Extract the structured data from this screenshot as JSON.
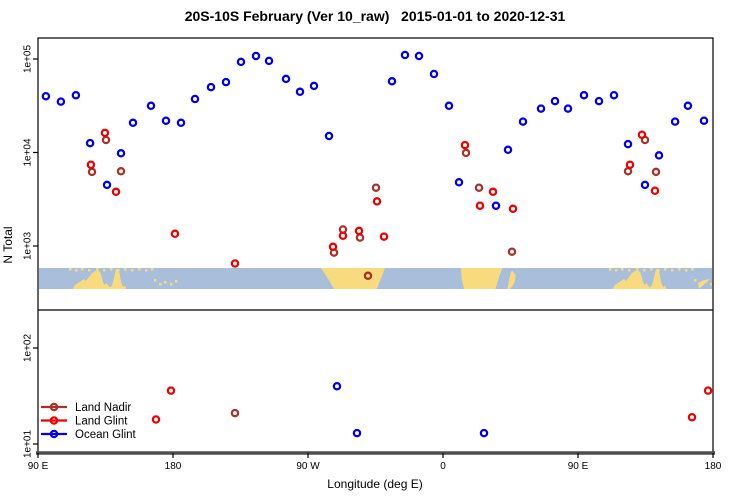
{
  "title": "20S-10S February (Ver 10_raw)   2015-01-01 to 2020-12-31",
  "axes": {
    "ylabel": "N Total",
    "xlabel": "Longitude (deg E)",
    "y_ticks": [
      "1e+05",
      "1e+04",
      "1e+03",
      "1e+02",
      "1e+01"
    ],
    "x_ticks": [
      "90 E",
      "180",
      "90 W",
      "0",
      "90 E",
      "180"
    ]
  },
  "legend": {
    "items": [
      {
        "label": "Land Nadir",
        "color": "#A93227"
      },
      {
        "label": "Land Glint",
        "color": "#EE0000"
      },
      {
        "label": "Ocean Glint",
        "color": "#0000EE"
      }
    ]
  },
  "colors": {
    "land_nadir": "#A93227",
    "land_glint": "#EE0000",
    "ocean_glint": "#0000EE",
    "map_ocean": "#A9BEDB",
    "map_land": "#F8DB7E",
    "axis_line": "#4D4D4D",
    "text": "#000000"
  },
  "chart_data": {
    "type": "scatter",
    "title": "20S-10S February (Ver 10_raw)   2015-01-01 to 2020-12-31",
    "xlabel": "Longitude (deg E)",
    "ylabel": "N Total",
    "x_axis": {
      "note": "longitude axis wraps eastward from 90E through 180, 90W, 0, 90E to 180; stored lon is degrees east continuing past 360",
      "tick_lons": [
        90,
        180,
        270,
        360,
        450,
        540
      ],
      "tick_labels": [
        "90 E",
        "180",
        "90 W",
        "0",
        "90 E",
        "180"
      ],
      "range": [
        90,
        540
      ]
    },
    "y_axis": {
      "scale": "log10",
      "tick_values": [
        100000,
        10000,
        1000,
        100,
        10
      ],
      "tick_labels": [
        "1e+05",
        "1e+04",
        "1e+03",
        "1e+02",
        "1e+01"
      ],
      "broken_axis": "map strip inserted below 1e+03; lower panel resumes above 1e+02"
    },
    "map_strip": {
      "band_lat": "10S-20S world map strip",
      "ocean_color": "#A9BEDB",
      "land_color": "#F8DB7E",
      "land_masses": [
        "Australia (appears twice)",
        "Melanesian islands",
        "South America",
        "Africa",
        "Madagascar"
      ]
    },
    "series": [
      {
        "name": "Land Nadir",
        "color": "#A93227",
        "points": [
          {
            "lon": 135.3,
            "n": 13600
          },
          {
            "lon": 126.0,
            "n": 6200
          },
          {
            "lon": 145.3,
            "n": 6300
          },
          {
            "lon": 293.3,
            "n": 1500
          },
          {
            "lon": 304.7,
            "n": 1230
          },
          {
            "lon": 287.3,
            "n": 850
          },
          {
            "lon": 315.3,
            "n": 4200
          },
          {
            "lon": 310.0,
            "n": 480
          },
          {
            "lon": 375.3,
            "n": 9900
          },
          {
            "lon": 384.0,
            "n": 4200
          },
          {
            "lon": 406.0,
            "n": 870
          },
          {
            "lon": 494.7,
            "n": 13600
          },
          {
            "lon": 483.3,
            "n": 6300
          },
          {
            "lon": 502.0,
            "n": 6200
          },
          {
            "lon": 221.3,
            "n": 21
          }
        ]
      },
      {
        "name": "Land Glint",
        "color": "#EE0000",
        "points": [
          {
            "lon": 134.7,
            "n": 16200
          },
          {
            "lon": 125.3,
            "n": 7400
          },
          {
            "lon": 142.0,
            "n": 3800
          },
          {
            "lon": 181.3,
            "n": 1350
          },
          {
            "lon": 221.3,
            "n": 650
          },
          {
            "lon": 293.3,
            "n": 1290
          },
          {
            "lon": 304.0,
            "n": 1450
          },
          {
            "lon": 286.7,
            "n": 980
          },
          {
            "lon": 316.0,
            "n": 3000
          },
          {
            "lon": 320.7,
            "n": 1260
          },
          {
            "lon": 374.7,
            "n": 12000
          },
          {
            "lon": 393.3,
            "n": 3800
          },
          {
            "lon": 384.7,
            "n": 2700
          },
          {
            "lon": 406.7,
            "n": 2500
          },
          {
            "lon": 492.7,
            "n": 15500
          },
          {
            "lon": 484.7,
            "n": 7400
          },
          {
            "lon": 501.3,
            "n": 3900
          },
          {
            "lon": 178.7,
            "n": 36
          },
          {
            "lon": 168.7,
            "n": 18
          },
          {
            "lon": 526.0,
            "n": 19
          },
          {
            "lon": 536.7,
            "n": 36
          }
        ]
      },
      {
        "name": "Ocean Glint",
        "color": "#0000EE",
        "points": [
          {
            "lon": 95.3,
            "n": 40000
          },
          {
            "lon": 105.3,
            "n": 35000
          },
          {
            "lon": 115.3,
            "n": 41000
          },
          {
            "lon": 124.7,
            "n": 12600
          },
          {
            "lon": 136.0,
            "n": 4500
          },
          {
            "lon": 145.3,
            "n": 9800
          },
          {
            "lon": 153.3,
            "n": 20800
          },
          {
            "lon": 165.3,
            "n": 31600
          },
          {
            "lon": 175.3,
            "n": 21900
          },
          {
            "lon": 185.3,
            "n": 20800
          },
          {
            "lon": 194.7,
            "n": 37300
          },
          {
            "lon": 205.3,
            "n": 50100
          },
          {
            "lon": 215.3,
            "n": 56600
          },
          {
            "lon": 225.3,
            "n": 93200
          },
          {
            "lon": 235.3,
            "n": 107800
          },
          {
            "lon": 244.0,
            "n": 95500
          },
          {
            "lon": 255.3,
            "n": 61200
          },
          {
            "lon": 264.7,
            "n": 44600
          },
          {
            "lon": 274.0,
            "n": 51500
          },
          {
            "lon": 284.0,
            "n": 15000
          },
          {
            "lon": 326.0,
            "n": 57800
          },
          {
            "lon": 334.7,
            "n": 110300
          },
          {
            "lon": 344.0,
            "n": 107800
          },
          {
            "lon": 354.0,
            "n": 69100
          },
          {
            "lon": 364.0,
            "n": 31600
          },
          {
            "lon": 370.7,
            "n": 4800
          },
          {
            "lon": 395.3,
            "n": 2700
          },
          {
            "lon": 403.3,
            "n": 10700
          },
          {
            "lon": 413.3,
            "n": 21400
          },
          {
            "lon": 425.3,
            "n": 29500
          },
          {
            "lon": 434.7,
            "n": 35500
          },
          {
            "lon": 443.3,
            "n": 29500
          },
          {
            "lon": 454.0,
            "n": 41000
          },
          {
            "lon": 464.0,
            "n": 35500
          },
          {
            "lon": 474.0,
            "n": 41000
          },
          {
            "lon": 483.3,
            "n": 12300
          },
          {
            "lon": 494.7,
            "n": 4500
          },
          {
            "lon": 504.0,
            "n": 9300
          },
          {
            "lon": 514.7,
            "n": 21400
          },
          {
            "lon": 523.3,
            "n": 31600
          },
          {
            "lon": 534.0,
            "n": 21900
          },
          {
            "lon": 289.3,
            "n": 40
          },
          {
            "lon": 302.7,
            "n": 13
          },
          {
            "lon": 387.3,
            "n": 13
          }
        ]
      }
    ]
  }
}
